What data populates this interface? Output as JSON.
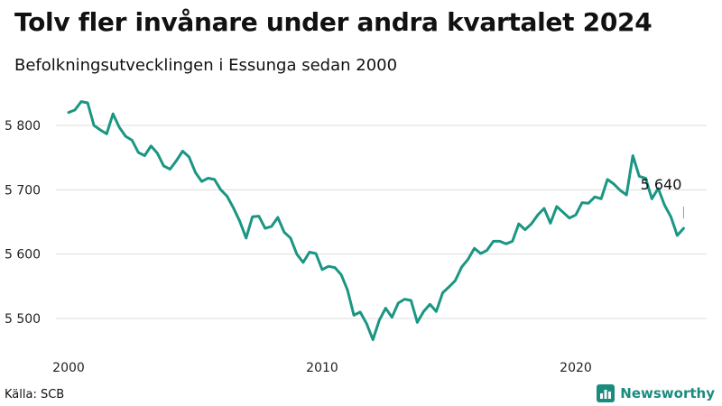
{
  "title": "Tolv fler invånare under andra kvartalet 2024",
  "subtitle": "Befolkningsutvecklingen i Essunga sedan 2000",
  "source": "Källa: SCB",
  "brand": "Newsworthy",
  "colors": {
    "line": "#1a9683",
    "grid": "#dddddd",
    "brand": "#1a8c7e"
  },
  "chart_data": {
    "type": "line",
    "x_unit": "quarter",
    "x_ticks": [
      "2000",
      "2010",
      "2020"
    ],
    "y_ticks": [
      "5 500",
      "5 600",
      "5 700",
      "5 800"
    ],
    "ylim": [
      5460,
      5840
    ],
    "grid": "horizontal",
    "end_label": "5 640",
    "series": [
      {
        "values": [
          5820,
          5824,
          5837,
          5835,
          5800,
          5793,
          5787,
          5818,
          5797,
          5783,
          5777,
          5758,
          5753,
          5768,
          5757,
          5737,
          5732,
          5745,
          5760,
          5751,
          5727,
          5713,
          5718,
          5716,
          5700,
          5690,
          5672,
          5651,
          5625,
          5658,
          5659,
          5640,
          5643,
          5657,
          5634,
          5625,
          5600,
          5587,
          5603,
          5601,
          5576,
          5581,
          5579,
          5568,
          5544,
          5505,
          5510,
          5492,
          5467,
          5497,
          5516,
          5502,
          5524,
          5530,
          5528,
          5494,
          5511,
          5522,
          5511,
          5540,
          5549,
          5559,
          5580,
          5592,
          5609,
          5601,
          5606,
          5620,
          5620,
          5616,
          5620,
          5647,
          5638,
          5647,
          5661,
          5671,
          5648,
          5674,
          5665,
          5656,
          5661,
          5680,
          5679,
          5689,
          5686,
          5716,
          5709,
          5699,
          5692,
          5753,
          5721,
          5718,
          5686,
          5702,
          5676,
          5658,
          5629,
          5640
        ]
      }
    ]
  }
}
